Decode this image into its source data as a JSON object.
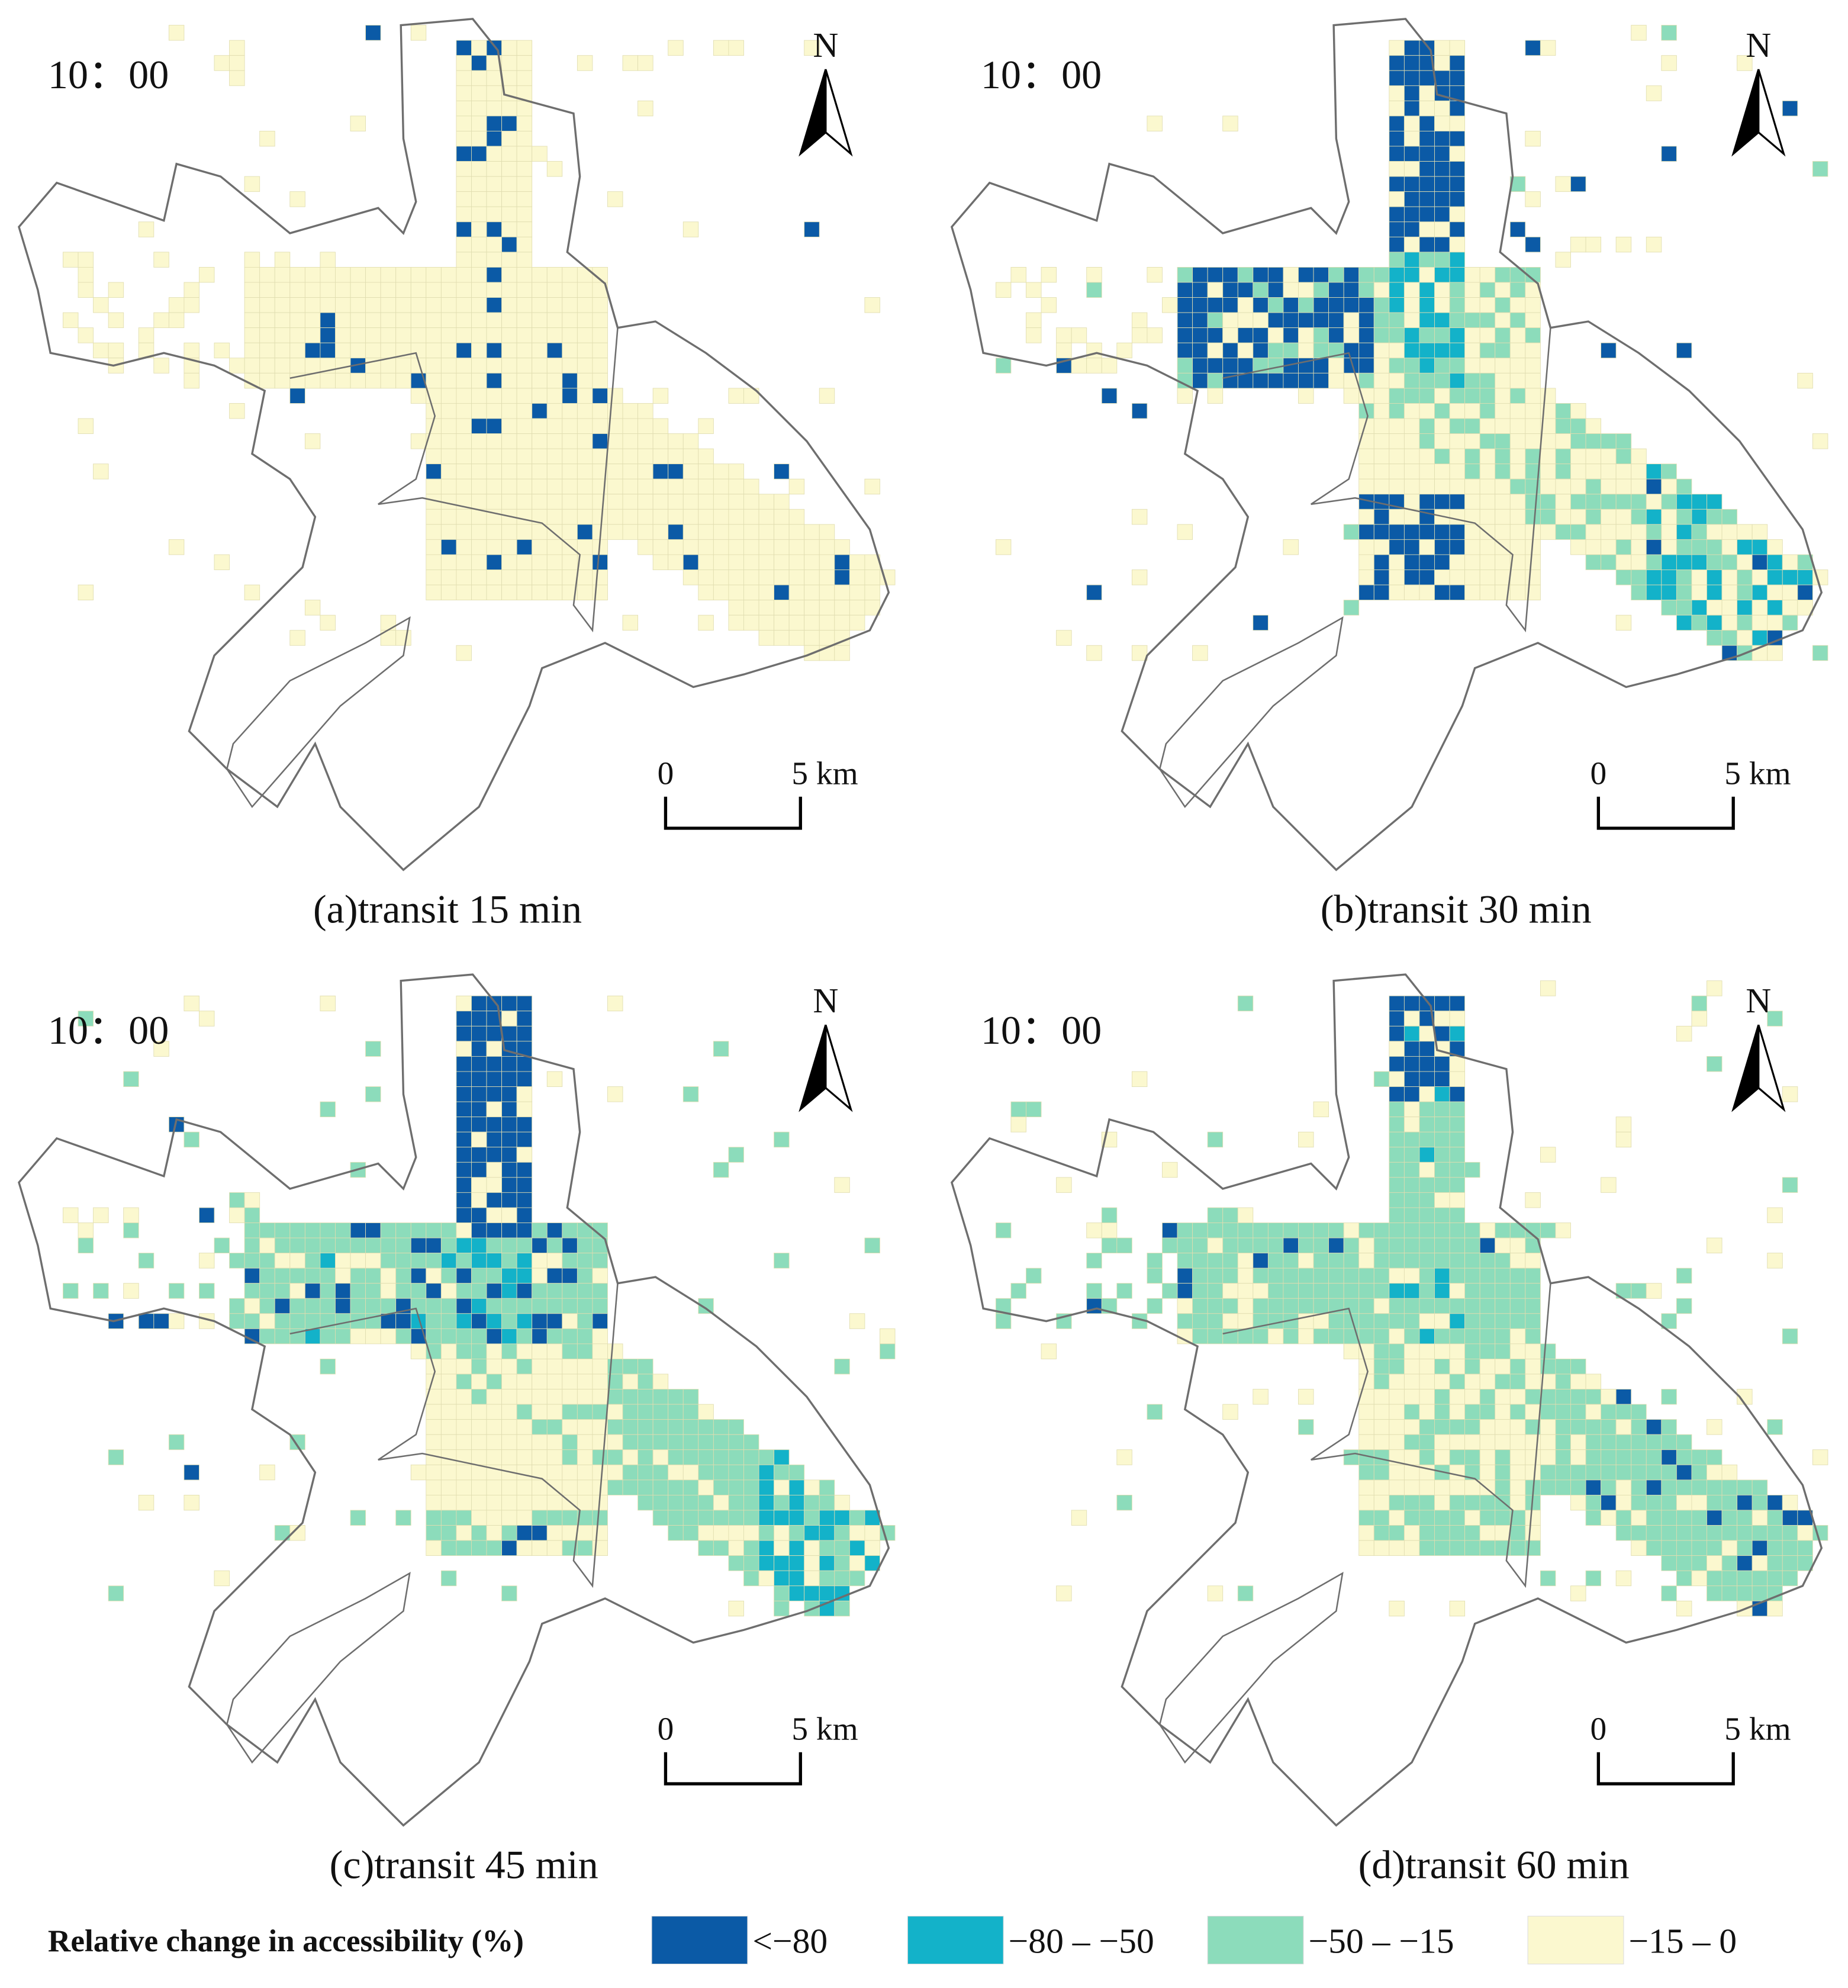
{
  "panels": [
    {
      "time": "10：00",
      "north": "N",
      "scale": {
        "start": "0",
        "end": "5 km"
      },
      "caption": "(a)transit 15 min"
    },
    {
      "time": "10：00",
      "north": "N",
      "scale": {
        "start": "0",
        "end": "5 km"
      },
      "caption": "(b)transit 30 min"
    },
    {
      "time": "10：00",
      "north": "N",
      "scale": {
        "start": "0",
        "end": "5 km"
      },
      "caption": "(c)transit 45 min"
    },
    {
      "time": "10：00",
      "north": "N",
      "scale": {
        "start": "0",
        "end": "5 km"
      },
      "caption": "(d)transit 60 min"
    }
  ],
  "legend": {
    "title": "Relative change in accessibility (%)",
    "items": [
      {
        "label": "<−80",
        "color": "#0b5aa6"
      },
      {
        "label": "−80 – −50",
        "color": "#13b2c9"
      },
      {
        "label": "−50 – −15",
        "color": "#8cdcbb"
      },
      {
        "label": "−15 – 0",
        "color": "#fbf8cf"
      }
    ]
  }
}
